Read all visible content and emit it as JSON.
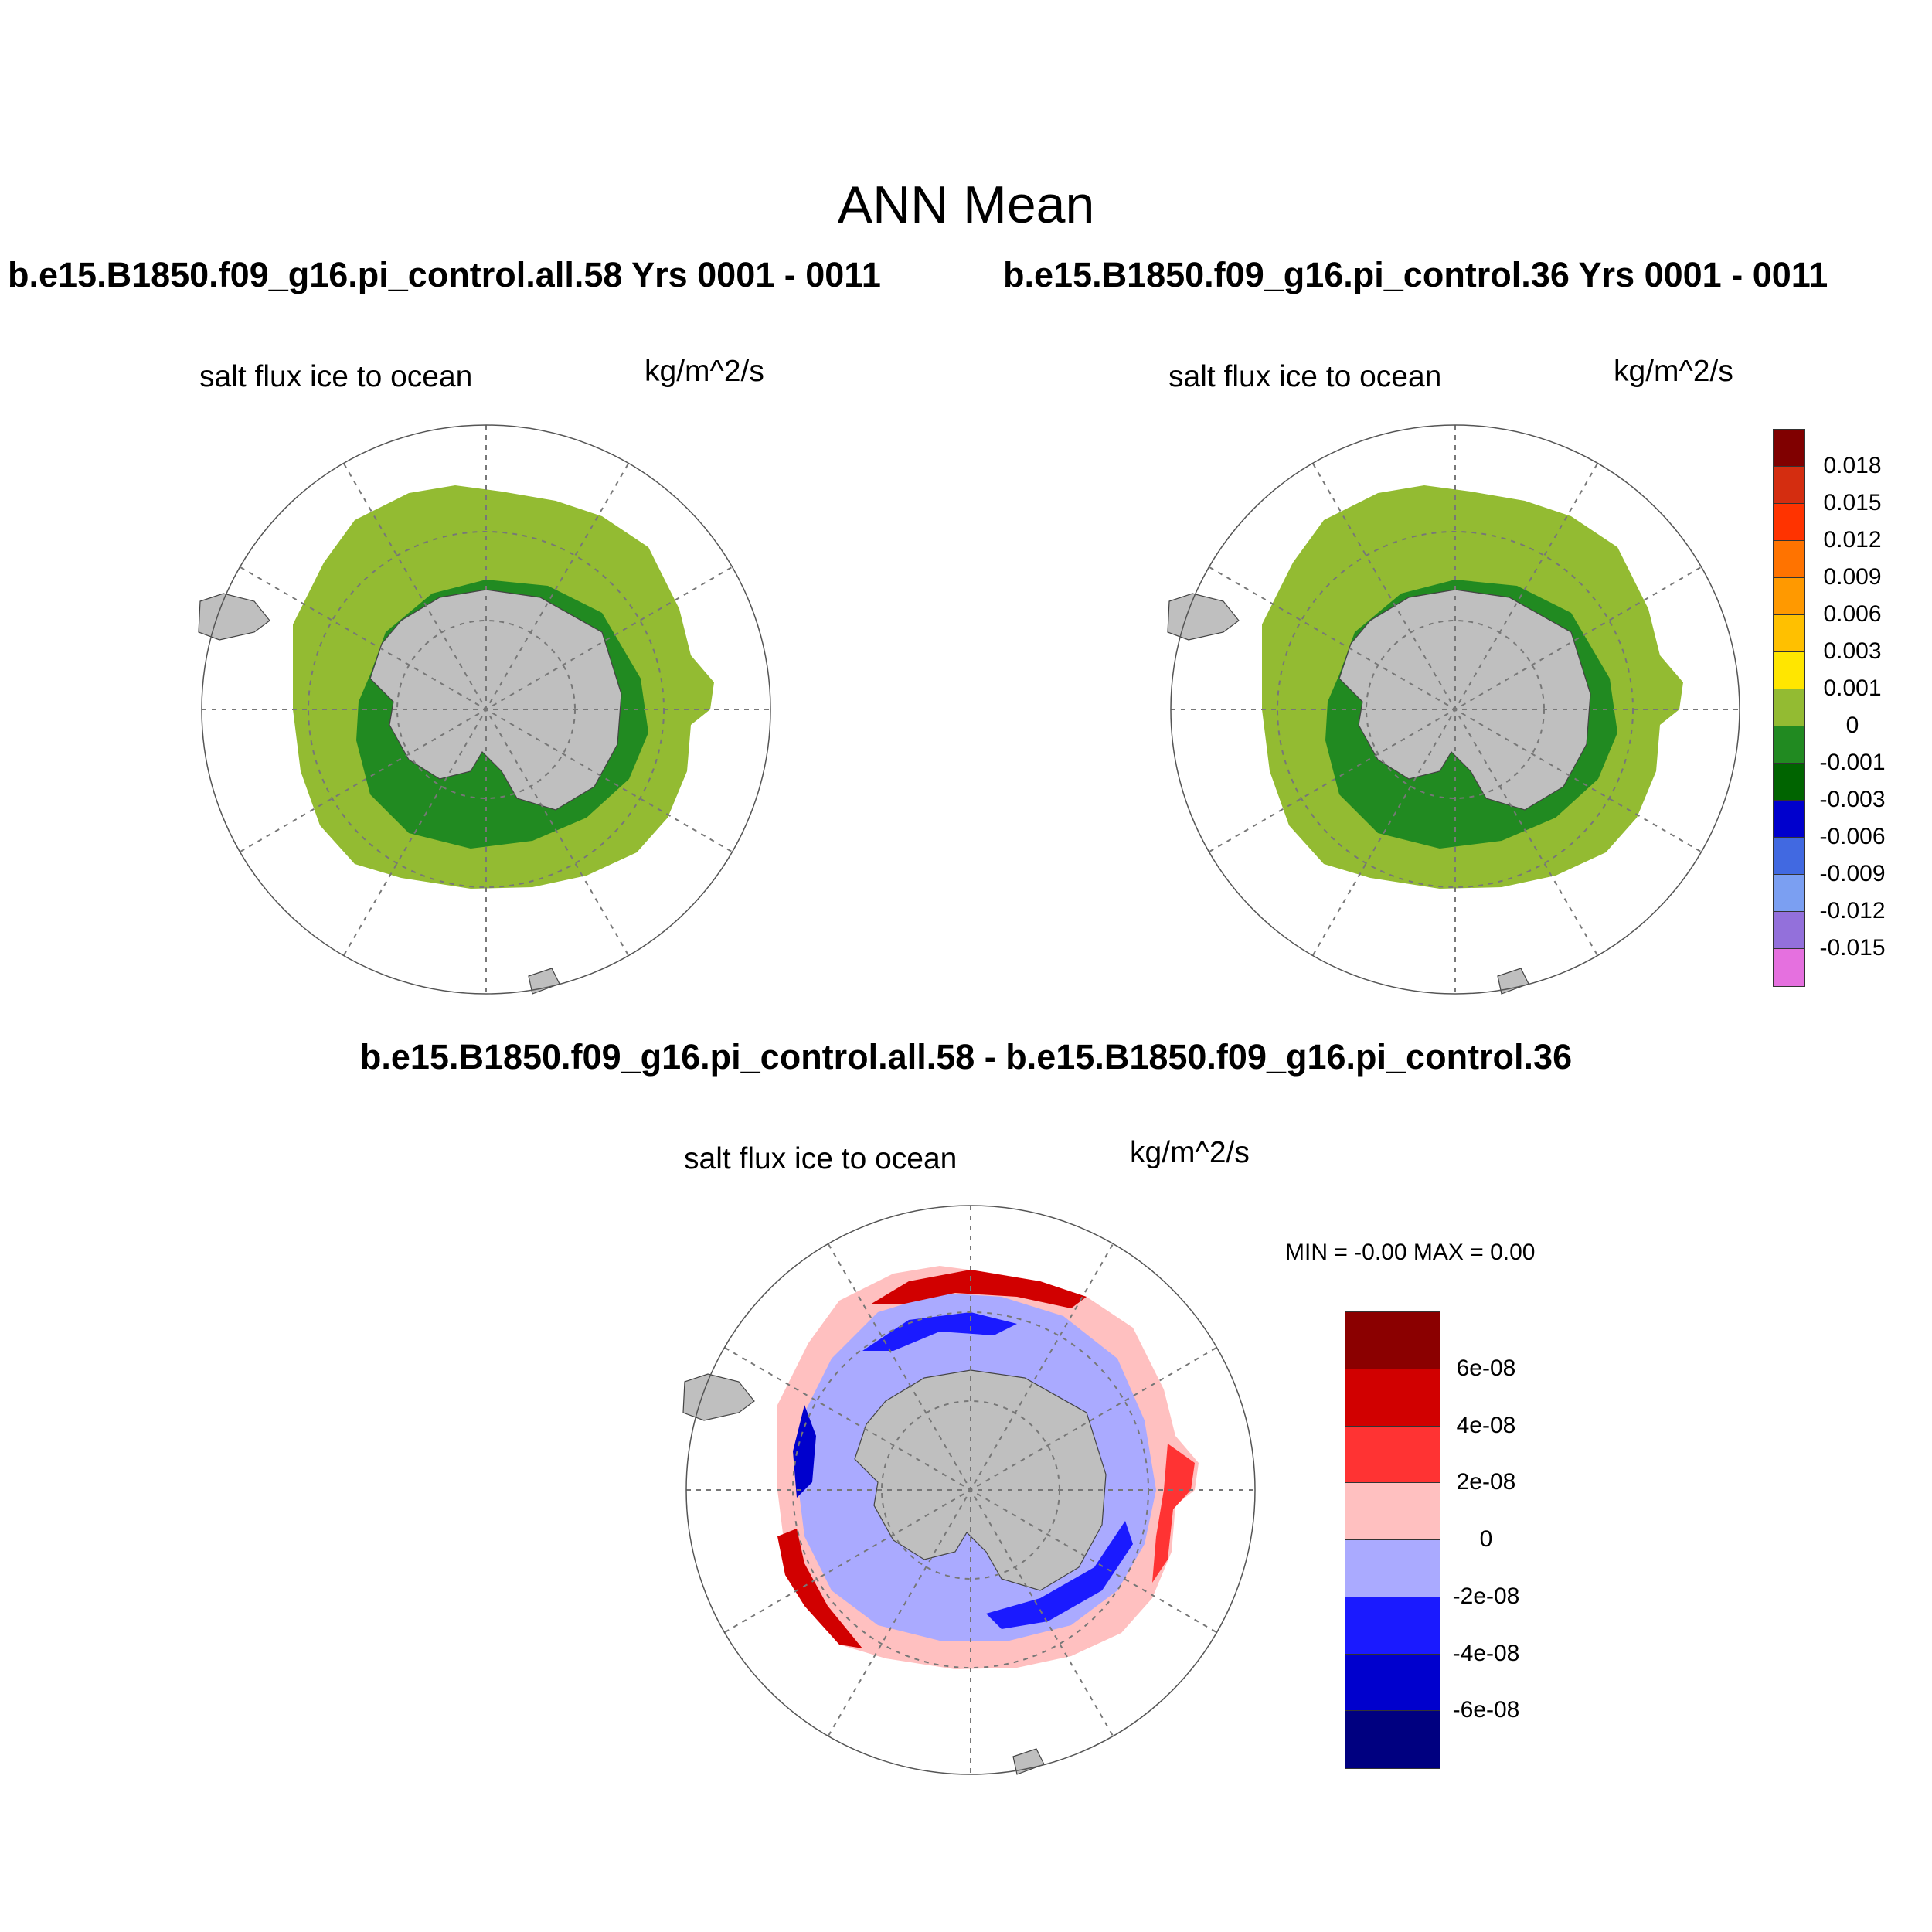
{
  "main_title": "ANN Mean",
  "panels": [
    {
      "run_title": "b.e15.B1850.f09_g16.pi_control.all.58  Yrs 0001 - 0011",
      "label": "salt flux ice to ocean",
      "units": "kg/m^2/s"
    },
    {
      "run_title": "b.e15.B1850.f09_g16.pi_control.36  Yrs 0001 - 0011",
      "label": "salt flux ice to ocean",
      "units": "kg/m^2/s"
    }
  ],
  "diff_panel": {
    "title": "b.e15.B1850.f09_g16.pi_control.all.58 - b.e15.B1850.f09_g16.pi_control.36",
    "label": "salt flux ice to ocean",
    "units": "kg/m^2/s",
    "minmax": "MIN =  -0.00 MAX =   0.00"
  },
  "colorbar_main": {
    "colors": [
      "#800000",
      "#d42d10",
      "#ff3300",
      "#ff7300",
      "#ff9900",
      "#ffc000",
      "#ffe600",
      "#93bb32",
      "#218a21",
      "#006400",
      "#0000cd",
      "#4169e1",
      "#7b9ff2",
      "#9370db",
      "#e570df"
    ],
    "labels": [
      "0.018",
      "0.015",
      "0.012",
      "0.009",
      "0.006",
      "0.003",
      "0.001",
      "0",
      "-0.001",
      "-0.003",
      "-0.006",
      "-0.009",
      "-0.012",
      "-0.015"
    ]
  },
  "colorbar_diff": {
    "colors": [
      "#8b0000",
      "#d10000",
      "#ff3333",
      "#ffc0c0",
      "#aaaaff",
      "#1a1aff",
      "#0000cd",
      "#000080"
    ],
    "labels": [
      "6e-08",
      "4e-08",
      "2e-08",
      "0",
      "-2e-08",
      "-4e-08",
      "-6e-08"
    ]
  }
}
